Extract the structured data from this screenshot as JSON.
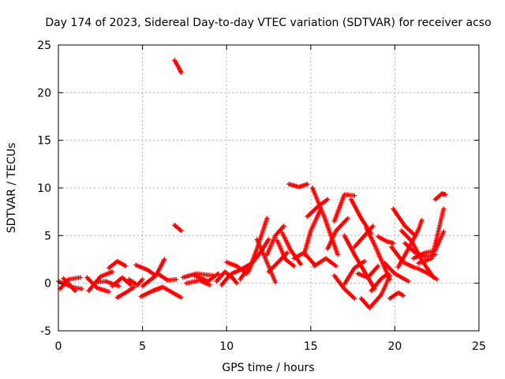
{
  "chart_data": {
    "type": "scatter",
    "title": "Day 174 of 2023, Sidereal Day-to-day VTEC variation (SDTVAR) for receiver acso",
    "xlabel": "GPS time / hours",
    "ylabel": "SDTVAR / TECUs",
    "xlim": [
      0,
      25
    ],
    "ylim": [
      -5,
      25
    ],
    "xticks": [
      0,
      5,
      10,
      15,
      20,
      25
    ],
    "yticks": [
      -5,
      0,
      5,
      10,
      15,
      20,
      25
    ],
    "xtick_labels": [
      "0",
      "5",
      "10",
      "15",
      "20",
      "25"
    ],
    "ytick_labels": [
      "-5",
      "0",
      "5",
      "10",
      "15",
      "20",
      "25"
    ],
    "grid": true,
    "marker": "+",
    "series": [
      {
        "name": "SDTVAR",
        "color": "#ff0000",
        "tracks": [
          [
            [
              0.0,
              0.2
            ],
            [
              0.8,
              -0.4
            ],
            [
              1.4,
              -0.6
            ]
          ],
          [
            [
              0.1,
              -0.6
            ],
            [
              0.6,
              0.4
            ],
            [
              1.3,
              0.6
            ]
          ],
          [
            [
              0.3,
              0.5
            ],
            [
              1.0,
              -0.8
            ]
          ],
          [
            [
              1.7,
              0.6
            ],
            [
              2.3,
              -0.5
            ],
            [
              3.0,
              -0.9
            ]
          ],
          [
            [
              1.8,
              -0.8
            ],
            [
              2.5,
              0.7
            ],
            [
              3.2,
              1.2
            ]
          ],
          [
            [
              2.2,
              0.1
            ],
            [
              2.8,
              0.2
            ],
            [
              3.6,
              -0.3
            ]
          ],
          [
            [
              3.0,
              1.6
            ],
            [
              3.5,
              2.3
            ],
            [
              4.0,
              1.8
            ]
          ],
          [
            [
              3.2,
              -0.3
            ],
            [
              3.8,
              0.6
            ],
            [
              4.3,
              -0.2
            ]
          ],
          [
            [
              3.5,
              -1.5
            ],
            [
              4.0,
              -1.0
            ],
            [
              4.5,
              -0.4
            ]
          ],
          [
            [
              4.2,
              0.4
            ],
            [
              4.7,
              -0.2
            ],
            [
              5.0,
              0.4
            ]
          ],
          [
            [
              4.6,
              1.9
            ],
            [
              5.3,
              1.4
            ],
            [
              5.7,
              0.9
            ]
          ],
          [
            [
              5.0,
              -0.3
            ],
            [
              5.8,
              0.8
            ],
            [
              6.3,
              2.5
            ]
          ],
          [
            [
              4.9,
              -1.4
            ],
            [
              5.5,
              -0.9
            ],
            [
              6.2,
              -0.4
            ]
          ],
          [
            [
              5.6,
              -0.8
            ],
            [
              6.2,
              -0.4
            ],
            [
              7.3,
              -1.5
            ]
          ],
          [
            [
              5.9,
              1.0
            ],
            [
              6.5,
              0.3
            ],
            [
              7.0,
              0.4
            ]
          ],
          [
            [
              7.4,
              0.6
            ],
            [
              8.2,
              1.0
            ],
            [
              9.2,
              0.8
            ]
          ],
          [
            [
              7.6,
              0.0
            ],
            [
              8.4,
              0.3
            ],
            [
              9.0,
              -0.2
            ]
          ],
          [
            [
              8.1,
              0.8
            ],
            [
              8.9,
              0.2
            ],
            [
              9.5,
              1.0
            ]
          ],
          [
            [
              9.4,
              0.2
            ],
            [
              9.9,
              1.2
            ],
            [
              10.3,
              0.6
            ]
          ],
          [
            [
              9.7,
              -0.2
            ],
            [
              10.2,
              0.9
            ],
            [
              10.6,
              0.0
            ]
          ],
          [
            [
              10.0,
              2.2
            ],
            [
              10.6,
              1.8
            ],
            [
              11.2,
              1.0
            ]
          ],
          [
            [
              10.3,
              1.0
            ],
            [
              10.8,
              1.4
            ],
            [
              11.4,
              2.0
            ]
          ],
          [
            [
              10.8,
              0.4
            ],
            [
              11.3,
              1.6
            ],
            [
              12.0,
              3.2
            ],
            [
              12.5,
              4.6
            ]
          ],
          [
            [
              11.3,
              1.2
            ],
            [
              11.8,
              3.6
            ],
            [
              12.4,
              6.8
            ]
          ],
          [
            [
              11.8,
              4.6
            ],
            [
              12.3,
              2.6
            ],
            [
              12.9,
              0.1
            ]
          ],
          [
            [
              12.4,
              3.0
            ],
            [
              12.9,
              5.0
            ],
            [
              13.4,
              6.0
            ]
          ],
          [
            [
              12.5,
              1.2
            ],
            [
              13.0,
              2.1
            ],
            [
              13.6,
              3.2
            ]
          ],
          [
            [
              13.0,
              4.5
            ],
            [
              13.5,
              2.5
            ],
            [
              14.0,
              1.8
            ]
          ],
          [
            [
              13.3,
              5.3
            ],
            [
              13.8,
              3.5
            ],
            [
              14.4,
              2.0
            ]
          ],
          [
            [
              13.7,
              10.4
            ],
            [
              14.3,
              10.1
            ],
            [
              14.8,
              10.4
            ]
          ],
          [
            [
              14.0,
              2.6
            ],
            [
              14.6,
              3.2
            ],
            [
              15.2,
              2.0
            ]
          ],
          [
            [
              14.6,
              3.0
            ],
            [
              15.0,
              5.5
            ],
            [
              15.6,
              7.8
            ]
          ],
          [
            [
              14.8,
              7.0
            ],
            [
              15.4,
              8.0
            ],
            [
              16.0,
              8.8
            ]
          ],
          [
            [
              15.1,
              10.0
            ],
            [
              15.8,
              7.0
            ],
            [
              16.6,
              3.0
            ]
          ],
          [
            [
              15.2,
              1.8
            ],
            [
              15.9,
              2.6
            ],
            [
              16.5,
              1.8
            ]
          ],
          [
            [
              16.0,
              3.6
            ],
            [
              16.5,
              5.5
            ],
            [
              17.2,
              6.8
            ]
          ],
          [
            [
              16.4,
              6.5
            ],
            [
              17.0,
              9.3
            ],
            [
              17.6,
              9.2
            ]
          ],
          [
            [
              16.4,
              0.8
            ],
            [
              17.0,
              -0.6
            ],
            [
              17.6,
              -1.6
            ]
          ],
          [
            [
              17.0,
              -0.1
            ],
            [
              17.6,
              1.6
            ],
            [
              18.2,
              2.3
            ]
          ],
          [
            [
              17.0,
              5.0
            ],
            [
              17.6,
              3.0
            ],
            [
              18.2,
              1.2
            ],
            [
              18.8,
              -0.6
            ]
          ],
          [
            [
              17.4,
              8.8
            ],
            [
              18.0,
              6.8
            ],
            [
              18.6,
              5.2
            ]
          ],
          [
            [
              17.8,
              1.0
            ],
            [
              18.4,
              0.6
            ],
            [
              19.0,
              1.8
            ]
          ],
          [
            [
              17.6,
              3.8
            ],
            [
              18.3,
              5.2
            ],
            [
              18.7,
              6.0
            ]
          ],
          [
            [
              18.0,
              -1.6
            ],
            [
              18.5,
              -2.6
            ],
            [
              19.2,
              -1.2
            ],
            [
              19.7,
              0.8
            ]
          ],
          [
            [
              18.6,
              -0.8
            ],
            [
              19.2,
              0.5
            ],
            [
              19.6,
              1.0
            ]
          ],
          [
            [
              18.3,
              5.8
            ],
            [
              18.8,
              4.0
            ],
            [
              19.3,
              2.0
            ],
            [
              19.7,
              0.4
            ]
          ],
          [
            [
              19.0,
              4.9
            ],
            [
              19.5,
              4.4
            ],
            [
              19.9,
              4.2
            ]
          ],
          [
            [
              19.7,
              -1.6
            ],
            [
              20.2,
              -1.0
            ],
            [
              20.5,
              -1.3
            ]
          ],
          [
            [
              19.9,
              7.8
            ],
            [
              20.6,
              6.0
            ],
            [
              21.2,
              5.0
            ]
          ],
          [
            [
              19.4,
              2.1
            ],
            [
              20.0,
              1.0
            ],
            [
              20.8,
              0.2
            ]
          ],
          [
            [
              19.8,
              3.8
            ],
            [
              20.5,
              2.2
            ],
            [
              21.2,
              1.6
            ]
          ],
          [
            [
              20.2,
              1.7
            ],
            [
              20.8,
              3.6
            ],
            [
              21.4,
              5.6
            ],
            [
              21.6,
              6.6
            ]
          ],
          [
            [
              20.6,
              4.2
            ],
            [
              21.2,
              3.2
            ],
            [
              21.8,
              2.8
            ],
            [
              22.4,
              3.0
            ]
          ],
          [
            [
              20.4,
              5.5
            ],
            [
              21.0,
              4.4
            ],
            [
              21.6,
              2.4
            ],
            [
              22.3,
              0.6
            ]
          ],
          [
            [
              21.1,
              2.6
            ],
            [
              21.8,
              3.2
            ],
            [
              22.4,
              3.4
            ],
            [
              22.9,
              5.4
            ]
          ],
          [
            [
              21.4,
              2.1
            ],
            [
              22.2,
              2.6
            ],
            [
              22.9,
              7.8
            ]
          ],
          [
            [
              22.4,
              8.8
            ],
            [
              22.8,
              9.4
            ],
            [
              23.0,
              9.3
            ]
          ],
          [
            [
              21.3,
              1.6
            ],
            [
              22.0,
              1.0
            ],
            [
              22.5,
              0.4
            ]
          ],
          [
            [
              6.9,
              23.4
            ],
            [
              7.1,
              22.8
            ],
            [
              7.3,
              22.1
            ]
          ],
          [
            [
              6.9,
              6.1
            ],
            [
              7.1,
              5.8
            ],
            [
              7.3,
              5.5
            ]
          ]
        ]
      }
    ]
  }
}
